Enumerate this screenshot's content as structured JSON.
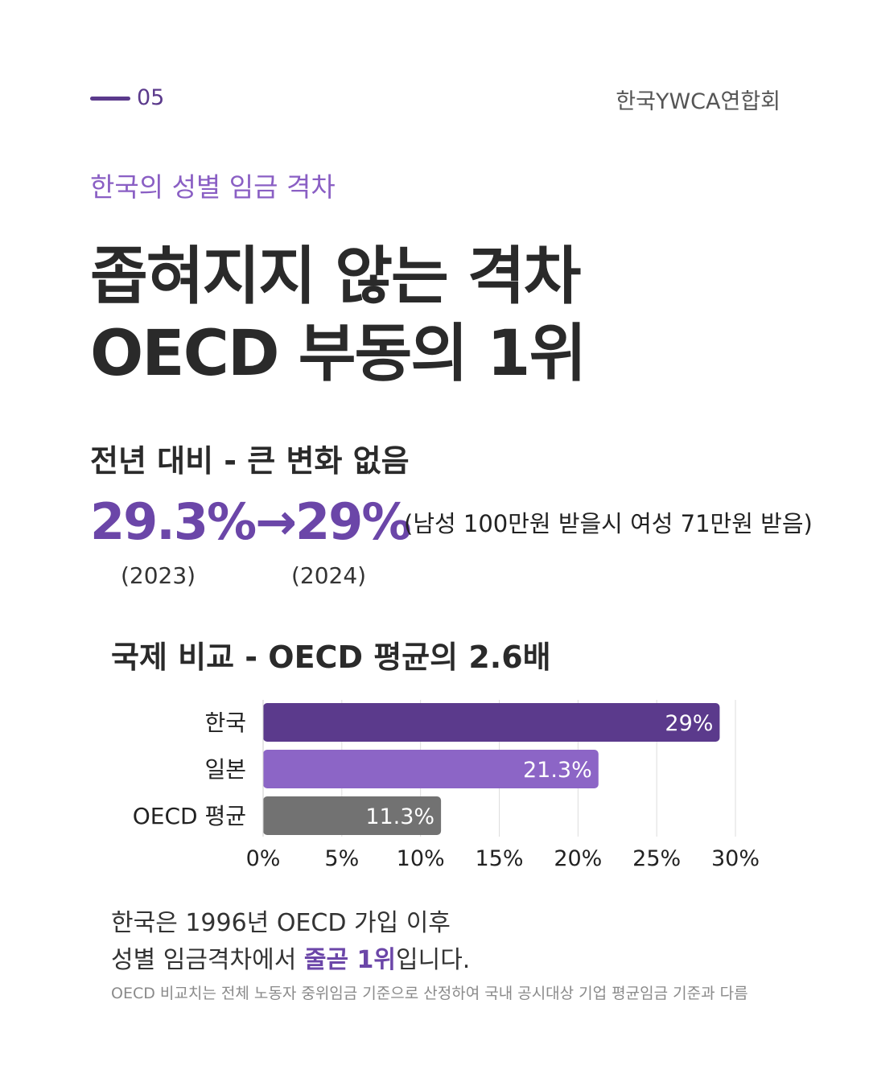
{
  "header": {
    "page_number": "05",
    "organization": "한국YWCA연합회"
  },
  "kicker": "한국의 성별 임금 격차",
  "title": {
    "line1": "좁혀지지 않는 격차",
    "line2": "OECD 부동의 1위"
  },
  "trend": {
    "heading": "전년 대비 - 큰 변화 없음",
    "value_from": "29.3%",
    "arrow": "→",
    "value_to": "29%",
    "note": "(남성 100만원 받을시 여성 71만원 받음)",
    "year_from": "(2023)",
    "year_to": "(2024)"
  },
  "comparison_heading": "국제 비교 - OECD 평균의 2.6배",
  "chart_data": {
    "type": "bar",
    "orientation": "horizontal",
    "categories": [
      "한국",
      "일본",
      "OECD 평균"
    ],
    "values": [
      29,
      21.3,
      11.3
    ],
    "value_labels": [
      "29%",
      "21.3%",
      "11.3%"
    ],
    "colors": [
      "#5b3a8c",
      "#8c65c6",
      "#727272"
    ],
    "xlim": [
      0,
      30
    ],
    "x_ticks": [
      0,
      5,
      10,
      15,
      20,
      25,
      30
    ],
    "x_tick_labels": [
      "0%",
      "5%",
      "10%",
      "15%",
      "20%",
      "25%",
      "30%"
    ],
    "grid": true
  },
  "footer": {
    "line1": "한국은 1996년 OECD 가입 이후",
    "line2_pre": "성별 임금격차에서 ",
    "line2_highlight": "줄곧 1위",
    "line2_post": "입니다.",
    "fine_print": "OECD 비교치는 전체 노동자 중위임금 기준으로 산정하여 국내 공시대상 기업 평균임금 기준과 다름"
  }
}
